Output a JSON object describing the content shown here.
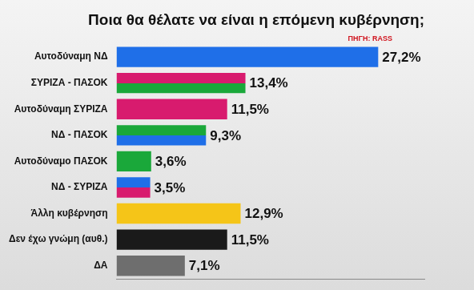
{
  "chart_data": {
    "type": "bar",
    "orientation": "horizontal",
    "title": "Ποια θα θέλατε να είναι η επόμενη κυβέρνηση;",
    "source": "ΠΗΓΗ: RASS",
    "categories": [
      "Αυτοδύναμη ΝΔ",
      "ΣΥΡΙΖΑ - ΠΑΣΟΚ",
      "Αυτοδύναμη ΣΥΡΙΖΑ",
      "ΝΔ - ΠΑΣΟΚ",
      "Αυτοδύναμο ΠΑΣΟΚ",
      "ΝΔ - ΣΥΡΙΖΑ",
      "Άλλη κυβέρνηση",
      "Δεν έχω γνώμη (αυθ.)",
      "ΔΑ"
    ],
    "values": [
      27.2,
      13.4,
      11.5,
      9.3,
      3.6,
      3.5,
      12.9,
      11.5,
      7.1
    ],
    "value_labels": [
      "27,2%",
      "13,4%",
      "11,5%",
      "9,3%",
      "3,6%",
      "3,5%",
      "12,9%",
      "11,5%",
      "7,1%"
    ],
    "colors": [
      "#1f6fe8",
      [
        "#d81b6e",
        "#1aa83a"
      ],
      "#d81b6e",
      [
        "#1aa83a",
        "#1f6fe8"
      ],
      "#1aa83a",
      [
        "#1f6fe8",
        "#d81b6e"
      ],
      "#f5c518",
      "#1a1a1a",
      "#6e6e6e"
    ],
    "xlim": [
      0,
      32
    ],
    "grid": false,
    "data_labels": true,
    "tick_labels": "y"
  }
}
